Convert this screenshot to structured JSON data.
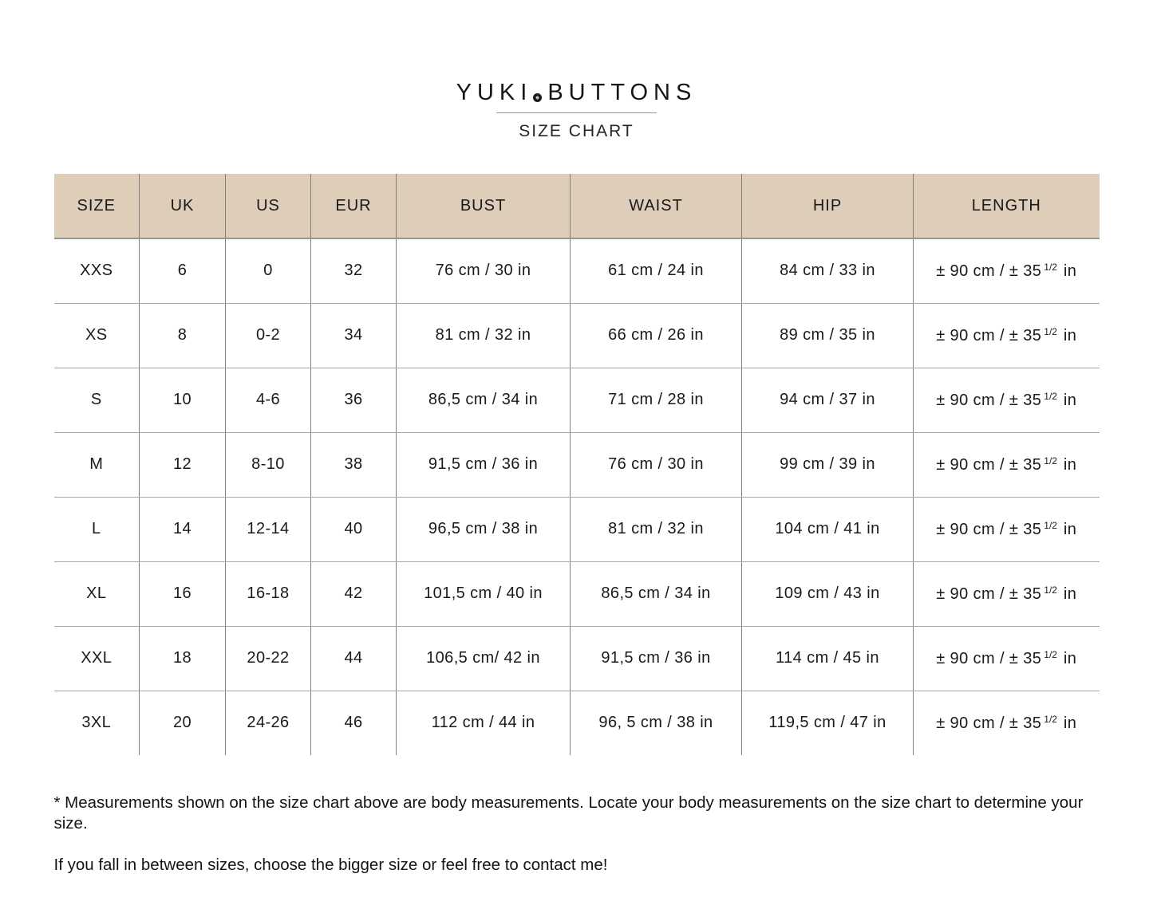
{
  "brand": {
    "name_left": "YUKI",
    "name_right": "BUTTONS",
    "subtitle": "SIZE CHART",
    "dot_icon": "button-dot"
  },
  "colors": {
    "header_bg": "#decdb9",
    "grid_vertical": "#7f7f7f",
    "grid_horizontal": "#a6a6a6",
    "text": "#1c1c1c"
  },
  "table": {
    "headers": [
      "SIZE",
      "UK",
      "US",
      "EUR",
      "BUST",
      "WAIST",
      "HIP",
      "LENGTH"
    ],
    "rows": [
      {
        "size": "XXS",
        "uk": "6",
        "us": "0",
        "eur": "32",
        "bust": "76 cm / 30 in",
        "waist": "61 cm / 24 in",
        "hip": "84 cm / 33 in",
        "length": {
          "main": "± 90 cm / ± 35",
          "frac": "1/2",
          "unit": "in"
        }
      },
      {
        "size": "XS",
        "uk": "8",
        "us": "0-2",
        "eur": "34",
        "bust": "81 cm / 32 in",
        "waist": "66 cm / 26 in",
        "hip": "89 cm / 35 in",
        "length": {
          "main": "± 90 cm / ± 35",
          "frac": "1/2",
          "unit": "in"
        }
      },
      {
        "size": "S",
        "uk": "10",
        "us": "4-6",
        "eur": "36",
        "bust": "86,5 cm / 34 in",
        "waist": "71 cm / 28 in",
        "hip": "94 cm / 37 in",
        "length": {
          "main": "± 90 cm / ± 35",
          "frac": "1/2",
          "unit": "in"
        }
      },
      {
        "size": "M",
        "uk": "12",
        "us": "8-10",
        "eur": "38",
        "bust": "91,5 cm / 36 in",
        "waist": "76 cm / 30 in",
        "hip": "99 cm / 39 in",
        "length": {
          "main": "± 90 cm / ± 35",
          "frac": "1/2",
          "unit": "in"
        }
      },
      {
        "size": "L",
        "uk": "14",
        "us": "12-14",
        "eur": "40",
        "bust": "96,5 cm / 38 in",
        "waist": "81 cm / 32 in",
        "hip": "104 cm / 41 in",
        "length": {
          "main": "± 90 cm / ± 35",
          "frac": "1/2",
          "unit": "in"
        }
      },
      {
        "size": "XL",
        "uk": "16",
        "us": "16-18",
        "eur": "42",
        "bust": "101,5 cm / 40 in",
        "waist": "86,5 cm / 34 in",
        "hip": "109 cm / 43 in",
        "length": {
          "main": "± 90 cm / ± 35",
          "frac": "1/2",
          "unit": "in"
        }
      },
      {
        "size": "XXL",
        "uk": "18",
        "us": "20-22",
        "eur": "44",
        "bust": "106,5 cm/ 42 in",
        "waist": "91,5 cm / 36 in",
        "hip": "114 cm / 45 in",
        "length": {
          "main": "± 90 cm / ± 35",
          "frac": "1/2",
          "unit": "in"
        }
      },
      {
        "size": "3XL",
        "uk": "20",
        "us": "24-26",
        "eur": "46",
        "bust": "112 cm / 44 in",
        "waist": "96, 5 cm / 38 in",
        "hip": "119,5 cm / 47 in",
        "length": {
          "main": "± 90 cm / ± 35",
          "frac": "1/2",
          "unit": "in"
        }
      }
    ]
  },
  "notes": {
    "measurement_note": "* Measurements shown on the size chart above are body measurements. Locate your body measurements on the size chart to determine your size.",
    "between_sizes_note": "If you fall in between sizes, choose the bigger size or feel free to contact me!"
  }
}
